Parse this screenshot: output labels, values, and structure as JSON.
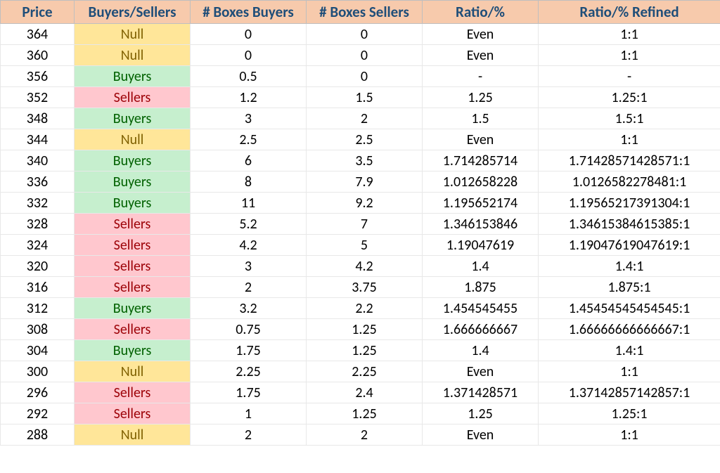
{
  "table": {
    "columns": [
      {
        "key": "price",
        "label": "Price"
      },
      {
        "key": "bs",
        "label": "Buyers/Sellers"
      },
      {
        "key": "boxesBuyers",
        "label": "# Boxes Buyers"
      },
      {
        "key": "boxesSellers",
        "label": "# Boxes Sellers"
      },
      {
        "key": "ratio",
        "label": "Ratio/%"
      },
      {
        "key": "ratioRefined",
        "label": "Ratio/% Refined"
      }
    ],
    "colors": {
      "header_bg": "#f7caac",
      "header_fg": "#1f4e79",
      "null_bg": "#ffe699",
      "null_fg": "#7f6000",
      "buyers_bg": "#c6efce",
      "buyers_fg": "#006100",
      "sellers_bg": "#ffc7ce",
      "sellers_fg": "#9c0006"
    },
    "rows": [
      {
        "price": "364",
        "bs": "Null",
        "boxesBuyers": "0",
        "boxesSellers": "0",
        "ratio": "Even",
        "ratioRefined": "1:1"
      },
      {
        "price": "360",
        "bs": "Null",
        "boxesBuyers": "0",
        "boxesSellers": "0",
        "ratio": "Even",
        "ratioRefined": "1:1"
      },
      {
        "price": "356",
        "bs": "Buyers",
        "boxesBuyers": "0.5",
        "boxesSellers": "0",
        "ratio": "-",
        "ratioRefined": "-"
      },
      {
        "price": "352",
        "bs": "Sellers",
        "boxesBuyers": "1.2",
        "boxesSellers": "1.5",
        "ratio": "1.25",
        "ratioRefined": "1.25:1"
      },
      {
        "price": "348",
        "bs": "Buyers",
        "boxesBuyers": "3",
        "boxesSellers": "2",
        "ratio": "1.5",
        "ratioRefined": "1.5:1"
      },
      {
        "price": "344",
        "bs": "Null",
        "boxesBuyers": "2.5",
        "boxesSellers": "2.5",
        "ratio": "Even",
        "ratioRefined": "1:1"
      },
      {
        "price": "340",
        "bs": "Buyers",
        "boxesBuyers": "6",
        "boxesSellers": "3.5",
        "ratio": "1.714285714",
        "ratioRefined": "1.71428571428571:1"
      },
      {
        "price": "336",
        "bs": "Buyers",
        "boxesBuyers": "8",
        "boxesSellers": "7.9",
        "ratio": "1.012658228",
        "ratioRefined": "1.0126582278481:1"
      },
      {
        "price": "332",
        "bs": "Buyers",
        "boxesBuyers": "11",
        "boxesSellers": "9.2",
        "ratio": "1.195652174",
        "ratioRefined": "1.19565217391304:1"
      },
      {
        "price": "328",
        "bs": "Sellers",
        "boxesBuyers": "5.2",
        "boxesSellers": "7",
        "ratio": "1.346153846",
        "ratioRefined": "1.34615384615385:1"
      },
      {
        "price": "324",
        "bs": "Sellers",
        "boxesBuyers": "4.2",
        "boxesSellers": "5",
        "ratio": "1.19047619",
        "ratioRefined": "1.19047619047619:1"
      },
      {
        "price": "320",
        "bs": "Sellers",
        "boxesBuyers": "3",
        "boxesSellers": "4.2",
        "ratio": "1.4",
        "ratioRefined": "1.4:1"
      },
      {
        "price": "316",
        "bs": "Sellers",
        "boxesBuyers": "2",
        "boxesSellers": "3.75",
        "ratio": "1.875",
        "ratioRefined": "1.875:1"
      },
      {
        "price": "312",
        "bs": "Buyers",
        "boxesBuyers": "3.2",
        "boxesSellers": "2.2",
        "ratio": "1.454545455",
        "ratioRefined": "1.45454545454545:1"
      },
      {
        "price": "308",
        "bs": "Sellers",
        "boxesBuyers": "0.75",
        "boxesSellers": "1.25",
        "ratio": "1.666666667",
        "ratioRefined": "1.66666666666667:1"
      },
      {
        "price": "304",
        "bs": "Buyers",
        "boxesBuyers": "1.75",
        "boxesSellers": "1.25",
        "ratio": "1.4",
        "ratioRefined": "1.4:1"
      },
      {
        "price": "300",
        "bs": "Null",
        "boxesBuyers": "2.25",
        "boxesSellers": "2.25",
        "ratio": "Even",
        "ratioRefined": "1:1"
      },
      {
        "price": "296",
        "bs": "Sellers",
        "boxesBuyers": "1.75",
        "boxesSellers": "2.4",
        "ratio": "1.371428571",
        "ratioRefined": "1.37142857142857:1"
      },
      {
        "price": "292",
        "bs": "Sellers",
        "boxesBuyers": "1",
        "boxesSellers": "1.25",
        "ratio": "1.25",
        "ratioRefined": "1.25:1"
      },
      {
        "price": "288",
        "bs": "Null",
        "boxesBuyers": "2",
        "boxesSellers": "2",
        "ratio": "Even",
        "ratioRefined": "1:1"
      }
    ]
  }
}
